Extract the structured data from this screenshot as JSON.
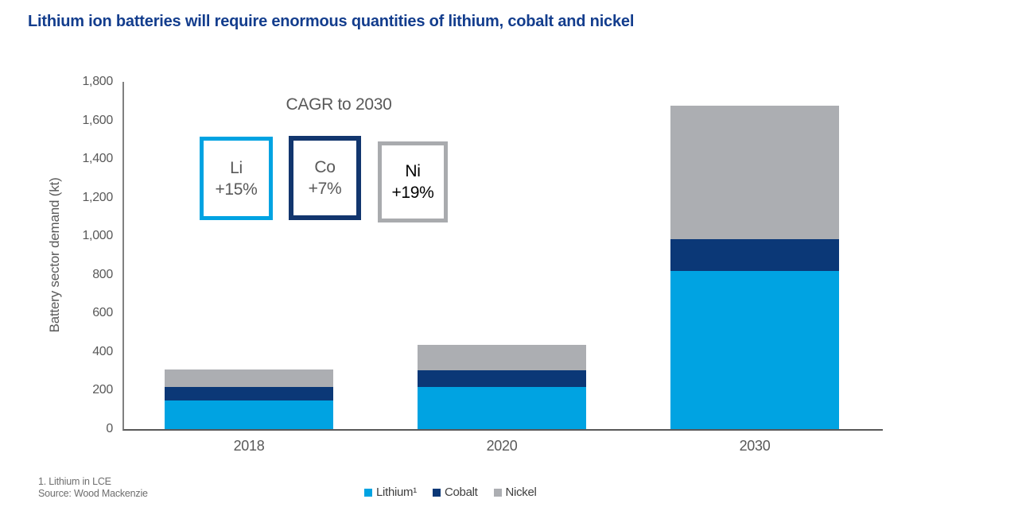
{
  "title": "Lithium ion batteries will require enormous quantities of lithium, cobalt and nickel",
  "colors": {
    "title_blue": "#133D8D",
    "lithium": "#00A3E2",
    "cobalt": "#0B3877",
    "nickel": "#ACAEB2",
    "axis_gray": "#595959",
    "footnote_gray": "#6E6E6E"
  },
  "chart_data": {
    "type": "bar",
    "stacked": true,
    "title": "Lithium ion batteries will require enormous quantities of lithium, cobalt and nickel",
    "categories": [
      "2018",
      "2020",
      "2030"
    ],
    "series": [
      {
        "name": "Lithium",
        "legend_label": "Lithium¹",
        "color": "#00A3E2",
        "values": [
          150,
          220,
          820
        ]
      },
      {
        "name": "Cobalt",
        "legend_label": "Cobalt",
        "color": "#0B3877",
        "values": [
          70,
          85,
          165
        ]
      },
      {
        "name": "Nickel",
        "legend_label": "Nickel",
        "color": "#ACAEB2",
        "values": [
          90,
          130,
          690
        ]
      }
    ],
    "xlabel": "",
    "ylabel": "Battery sector demand (kt)",
    "ylim": [
      0,
      1800
    ],
    "ytick_step": 200,
    "ytick_labels": [
      "0",
      "200",
      "400",
      "600",
      "800",
      "1,000",
      "1,200",
      "1,400",
      "1,600",
      "1,800"
    ],
    "grid": false,
    "legend_position": "bottom-center"
  },
  "annotation": {
    "heading": "CAGR to 2030",
    "boxes": [
      {
        "symbol": "Li",
        "value": "+15%",
        "border_color": "#00A3E2",
        "text_color": "#595959"
      },
      {
        "symbol": "Co",
        "value": "+7%",
        "border_color": "#12366E",
        "text_color": "#595959"
      },
      {
        "symbol": "Ni",
        "value": "+19%",
        "border_color": "#A9ABAE",
        "text_color": "#000000"
      }
    ]
  },
  "footnotes": [
    "1. Lithium in LCE",
    "Source: Wood Mackenzie"
  ]
}
